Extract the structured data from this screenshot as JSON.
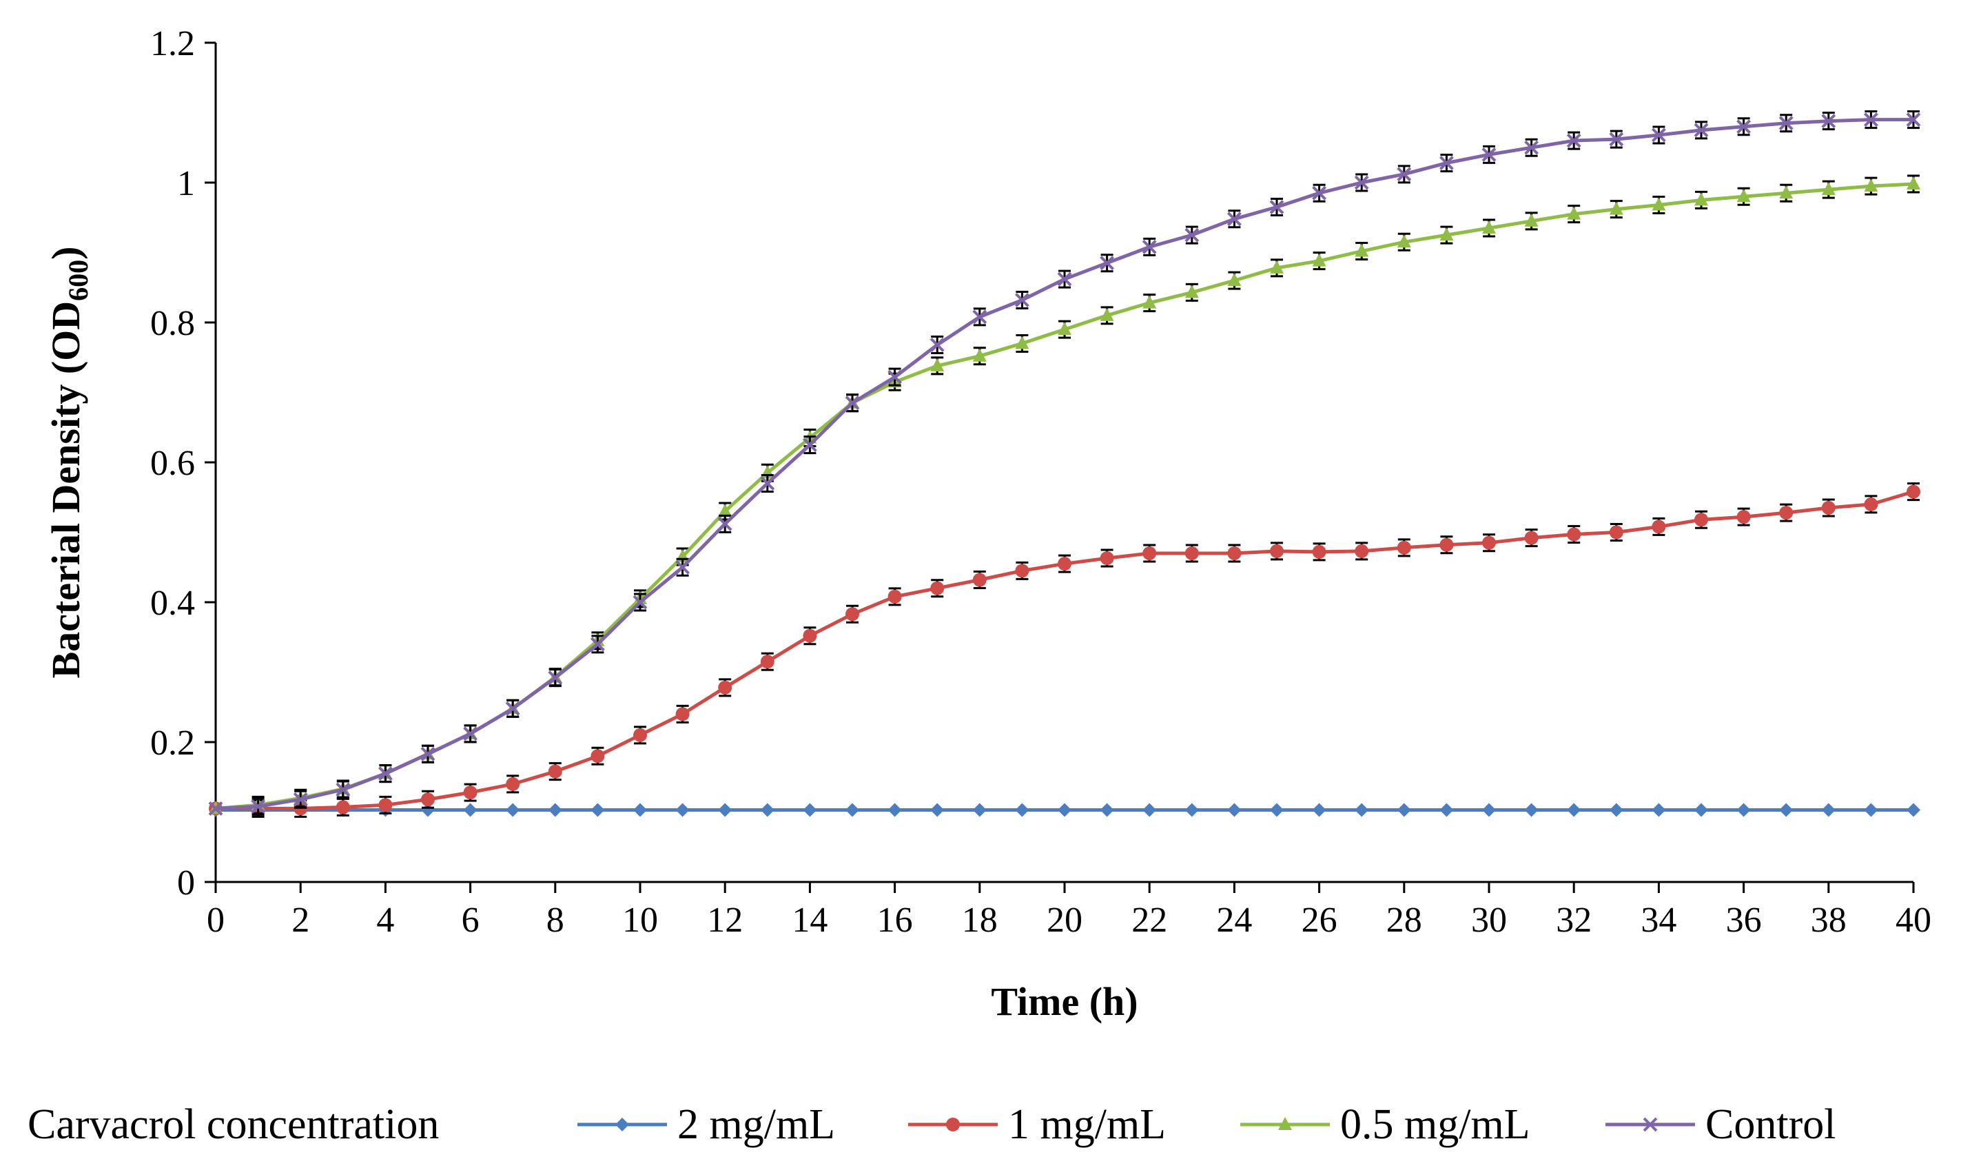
{
  "chart_data": {
    "type": "line",
    "title": "",
    "xlabel": "Time (h)",
    "ylabel": "Bacterial Density (OD",
    "ylabel_subscript": "600",
    "ylabel_close": ")",
    "xlim": [
      0,
      40
    ],
    "ylim": [
      0,
      1.2
    ],
    "x_ticks": [
      0,
      2,
      4,
      6,
      8,
      10,
      12,
      14,
      16,
      18,
      20,
      22,
      24,
      26,
      28,
      30,
      32,
      34,
      36,
      38,
      40
    ],
    "x_tick_labels": [
      "0",
      "2",
      "4",
      "6",
      "8",
      "10",
      "12",
      "14",
      "16",
      "18",
      "20",
      "22",
      "24",
      "26",
      "28",
      "30",
      "32",
      "34",
      "36",
      "38",
      "40"
    ],
    "y_ticks": [
      0,
      0.2,
      0.4,
      0.6,
      0.8,
      1.0,
      1.2
    ],
    "y_tick_labels": [
      "0",
      "0.2",
      "0.4",
      "0.6",
      "0.8",
      "1",
      "1.2"
    ],
    "grid": false,
    "legend_title": "Carvacrol concentration",
    "legend_position": "bottom",
    "x": [
      0,
      1,
      2,
      3,
      4,
      5,
      6,
      7,
      8,
      9,
      10,
      11,
      12,
      13,
      14,
      15,
      16,
      17,
      18,
      19,
      20,
      21,
      22,
      23,
      24,
      25,
      26,
      27,
      28,
      29,
      30,
      31,
      32,
      33,
      34,
      35,
      36,
      37,
      38,
      39,
      40
    ],
    "series": [
      {
        "name": "2 mg/mL",
        "color": "#4a7ec1",
        "marker": "diamond",
        "values": [
          0.103,
          0.103,
          0.103,
          0.103,
          0.103,
          0.103,
          0.103,
          0.103,
          0.103,
          0.103,
          0.103,
          0.103,
          0.103,
          0.103,
          0.103,
          0.103,
          0.103,
          0.103,
          0.103,
          0.103,
          0.103,
          0.103,
          0.103,
          0.103,
          0.103,
          0.103,
          0.103,
          0.103,
          0.103,
          0.103,
          0.103,
          0.103,
          0.103,
          0.103,
          0.103,
          0.103,
          0.103,
          0.103,
          0.103,
          0.103,
          0.103
        ]
      },
      {
        "name": "1 mg/mL",
        "color": "#cf4b47",
        "marker": "circle",
        "values": [
          0.105,
          0.105,
          0.105,
          0.107,
          0.11,
          0.118,
          0.128,
          0.14,
          0.158,
          0.18,
          0.21,
          0.24,
          0.278,
          0.315,
          0.352,
          0.383,
          0.408,
          0.42,
          0.432,
          0.445,
          0.455,
          0.463,
          0.47,
          0.47,
          0.47,
          0.473,
          0.472,
          0.473,
          0.478,
          0.482,
          0.485,
          0.492,
          0.497,
          0.5,
          0.508,
          0.518,
          0.522,
          0.528,
          0.535,
          0.54,
          0.558
        ]
      },
      {
        "name": "0.5 mg/mL",
        "color": "#8fbc45",
        "marker": "triangle",
        "values": [
          0.105,
          0.11,
          0.12,
          0.133,
          0.155,
          0.183,
          0.212,
          0.248,
          0.293,
          0.345,
          0.405,
          0.465,
          0.53,
          0.585,
          0.635,
          0.685,
          0.715,
          0.738,
          0.752,
          0.77,
          0.79,
          0.81,
          0.828,
          0.843,
          0.86,
          0.878,
          0.888,
          0.902,
          0.915,
          0.925,
          0.935,
          0.945,
          0.955,
          0.962,
          0.968,
          0.975,
          0.98,
          0.985,
          0.99,
          0.995,
          0.998
        ]
      },
      {
        "name": "Control",
        "color": "#8064a8",
        "marker": "x",
        "values": [
          0.105,
          0.108,
          0.118,
          0.132,
          0.155,
          0.183,
          0.212,
          0.248,
          0.292,
          0.34,
          0.4,
          0.45,
          0.512,
          0.57,
          0.625,
          0.685,
          0.722,
          0.768,
          0.808,
          0.832,
          0.862,
          0.885,
          0.908,
          0.925,
          0.948,
          0.965,
          0.985,
          1.0,
          1.012,
          1.028,
          1.04,
          1.05,
          1.06,
          1.062,
          1.068,
          1.075,
          1.08,
          1.085,
          1.088,
          1.09,
          1.09
        ]
      }
    ]
  }
}
